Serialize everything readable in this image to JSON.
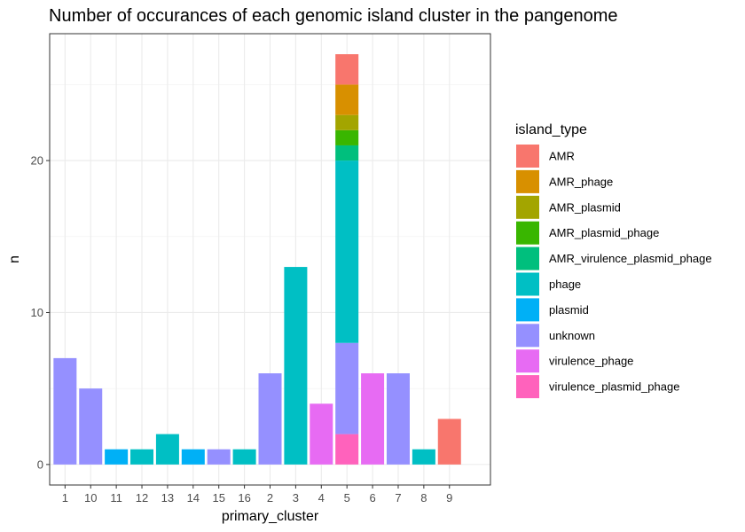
{
  "chart_data": {
    "type": "bar",
    "stacked": true,
    "title": "Number of occurances of each genomic island cluster in the pangenome",
    "xlabel": "primary_cluster",
    "ylabel": "n",
    "ylim": [
      -1.35,
      28.35
    ],
    "yticks": [
      0,
      10,
      20
    ],
    "grid": true,
    "legend_position": "right",
    "legend_title": "island_type",
    "categories": [
      "1",
      "10",
      "11",
      "12",
      "13",
      "14",
      "15",
      "16",
      "2",
      "3",
      "4",
      "5",
      "6",
      "7",
      "8",
      "9"
    ],
    "series": [
      {
        "name": "AMR",
        "color": "#F8766D",
        "values": [
          0,
          0,
          0,
          0,
          0,
          0,
          0,
          0,
          0,
          0,
          0,
          2,
          0,
          0,
          0,
          3
        ]
      },
      {
        "name": "AMR_phage",
        "color": "#D89000",
        "values": [
          0,
          0,
          0,
          0,
          0,
          0,
          0,
          0,
          0,
          0,
          0,
          2,
          0,
          0,
          0,
          0
        ]
      },
      {
        "name": "AMR_plasmid",
        "color": "#A3A500",
        "values": [
          0,
          0,
          0,
          0,
          0,
          0,
          0,
          0,
          0,
          0,
          0,
          1,
          0,
          0,
          0,
          0
        ]
      },
      {
        "name": "AMR_plasmid_phage",
        "color": "#39B600",
        "values": [
          0,
          0,
          0,
          0,
          0,
          0,
          0,
          0,
          0,
          0,
          0,
          1,
          0,
          0,
          0,
          0
        ]
      },
      {
        "name": "AMR_virulence_plasmid_phage",
        "color": "#00BF7D",
        "values": [
          0,
          0,
          0,
          0,
          0,
          0,
          0,
          0,
          0,
          0,
          0,
          1,
          0,
          0,
          0,
          0
        ]
      },
      {
        "name": "phage",
        "color": "#00BFC4",
        "values": [
          0,
          0,
          0,
          1,
          2,
          0,
          0,
          1,
          0,
          13,
          0,
          12,
          0,
          0,
          1,
          0
        ]
      },
      {
        "name": "plasmid",
        "color": "#00B0F6",
        "values": [
          0,
          0,
          1,
          0,
          0,
          1,
          0,
          0,
          0,
          0,
          0,
          0,
          0,
          0,
          0,
          0
        ]
      },
      {
        "name": "unknown",
        "color": "#9590FF",
        "values": [
          7,
          5,
          0,
          0,
          0,
          0,
          1,
          0,
          6,
          0,
          0,
          6,
          0,
          6,
          0,
          0
        ]
      },
      {
        "name": "virulence_phage",
        "color": "#E76BF3",
        "values": [
          0,
          0,
          0,
          0,
          0,
          0,
          0,
          0,
          0,
          0,
          4,
          0,
          6,
          0,
          0,
          0
        ]
      },
      {
        "name": "virulence_plasmid_phage",
        "color": "#FF62BC",
        "values": [
          0,
          0,
          0,
          0,
          0,
          0,
          0,
          0,
          0,
          0,
          0,
          2,
          0,
          0,
          0,
          0
        ]
      }
    ]
  }
}
